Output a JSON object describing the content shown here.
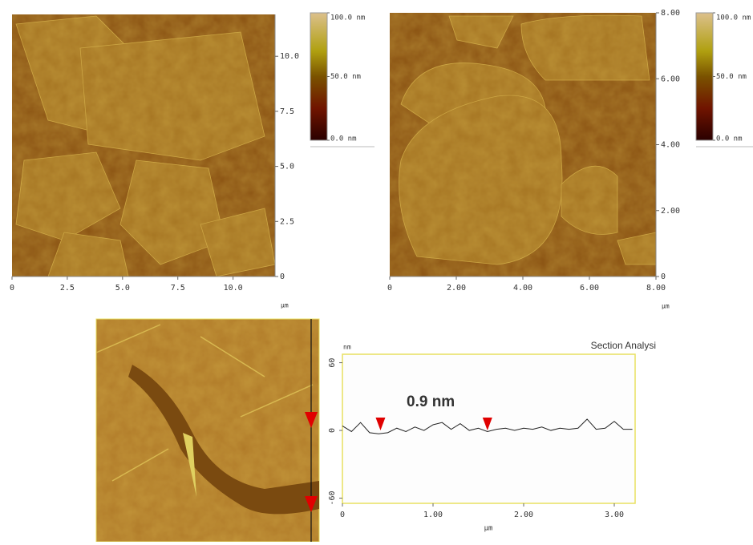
{
  "chart_data": [
    {
      "type": "image",
      "x_label": "µm",
      "xlim": [
        0,
        11.9
      ],
      "ylim": [
        0,
        11.9
      ],
      "xticks": [
        0,
        2.5,
        {
          "value": 5,
          "label": "5.0"
        },
        7.5,
        {
          "value": 10,
          "label": "10.0"
        }
      ],
      "yticks": [
        0,
        2.5,
        {
          "value": 5,
          "label": "5.0"
        },
        7.5,
        {
          "value": 10,
          "label": "10.0"
        }
      ],
      "colorbar": {
        "lim": [
          0,
          100
        ],
        "ticks": [
          {
            "value": 100,
            "label": "100.0 nm"
          },
          {
            "value": 50,
            "label": "50.0 nm"
          },
          {
            "value": 0,
            "label": "0.0 nm"
          }
        ]
      }
    },
    {
      "type": "image",
      "x_label": "µm",
      "xlim": [
        0,
        8
      ],
      "ylim": [
        0,
        8
      ],
      "xticks": [
        0,
        {
          "value": 2,
          "label": "2.00"
        },
        {
          "value": 4,
          "label": "4.00"
        },
        {
          "value": 6,
          "label": "6.00"
        },
        {
          "value": 8,
          "label": "8.00"
        }
      ],
      "yticks": [
        0,
        {
          "value": 2,
          "label": "2.00"
        },
        {
          "value": 4,
          "label": "4.00"
        },
        {
          "value": 6,
          "label": "6.00"
        },
        {
          "value": 8,
          "label": "8.00"
        }
      ],
      "colorbar": {
        "lim": [
          0,
          100
        ],
        "ticks": [
          {
            "value": 100,
            "label": "100.0 nm"
          },
          {
            "value": 50,
            "label": "50.0 nm"
          },
          {
            "value": 0,
            "label": "0.0 nm"
          }
        ]
      }
    },
    {
      "type": "line",
      "title": "Section Analysi",
      "y_label": "nm",
      "x_label": "µm",
      "annotation": "0.9 nm",
      "xlim": [
        0,
        3.23
      ],
      "ylim": [
        -64.6,
        67.5
      ],
      "xticks": [
        0,
        {
          "value": 1,
          "label": "1.00"
        },
        {
          "value": 2,
          "label": "2.00"
        },
        {
          "value": 3,
          "label": "3.00"
        }
      ],
      "yticks": [
        60,
        0,
        -60
      ],
      "x": [
        0,
        0.1,
        0.2,
        0.3,
        0.4,
        0.5,
        0.6,
        0.7,
        0.8,
        0.9,
        1.0,
        1.1,
        1.2,
        1.3,
        1.4,
        1.5,
        1.6,
        1.7,
        1.8,
        1.9,
        2.0,
        2.1,
        2.2,
        2.3,
        2.4,
        2.5,
        2.6,
        2.7,
        2.8,
        2.9,
        3.0,
        3.1,
        3.2
      ],
      "series": [
        {
          "color": "#222222",
          "values": [
            4,
            -1,
            7,
            -2,
            -3,
            -2,
            2,
            -1,
            3,
            0,
            5,
            7,
            1,
            6,
            0,
            2,
            -1,
            1,
            2,
            0,
            2,
            1,
            3,
            0,
            2,
            1,
            2,
            10,
            1,
            2,
            8,
            1,
            1
          ]
        }
      ],
      "cursors": [
        0.42,
        1.6
      ],
      "cursor_color": "#e00000"
    }
  ]
}
